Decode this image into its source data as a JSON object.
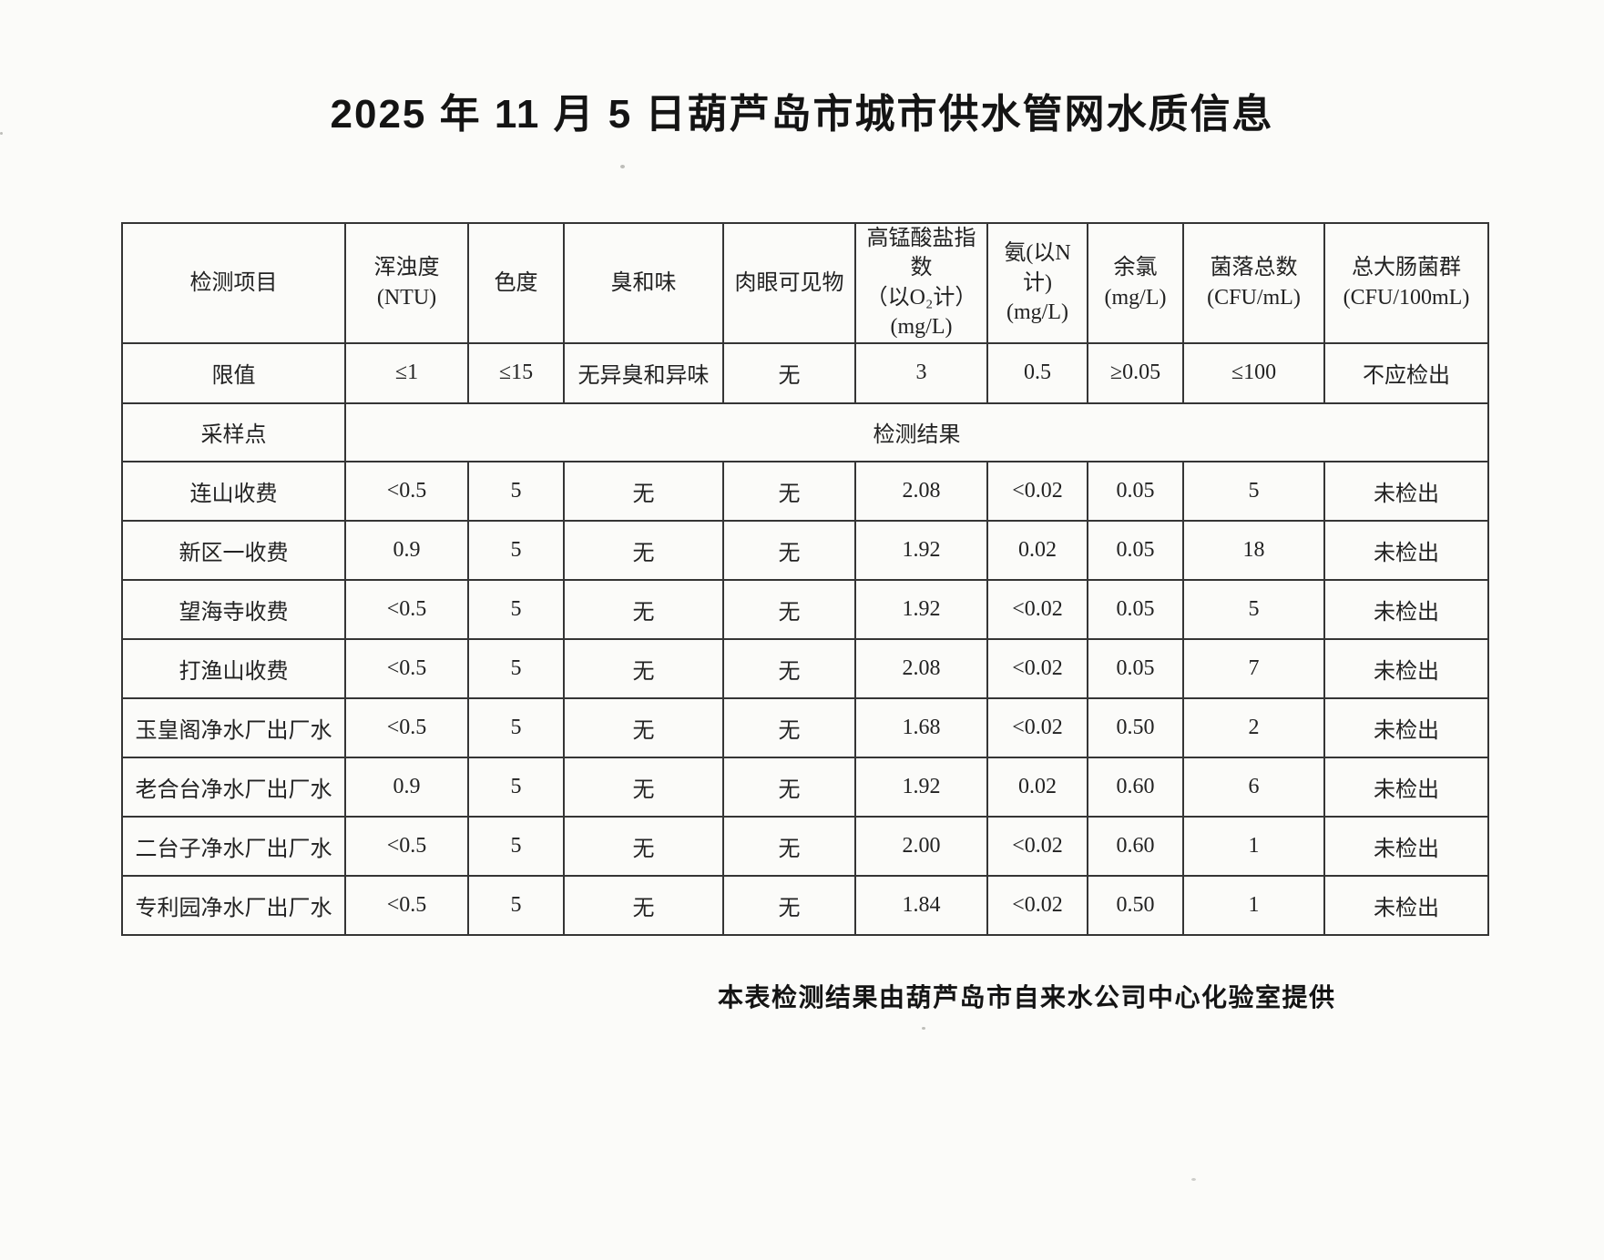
{
  "document": {
    "title": "2025 年 11 月 5 日葫芦岛市城市供水管网水质信息",
    "footer_note": "本表检测结果由葫芦岛市自来水公司中心化验室提供"
  },
  "table": {
    "header": {
      "item_label": "检测项目",
      "columns": [
        {
          "lines": [
            "浑浊度(NTU)"
          ]
        },
        {
          "lines": [
            "色度"
          ]
        },
        {
          "lines": [
            "臭和味"
          ]
        },
        {
          "lines": [
            "肉眼可见物"
          ]
        },
        {
          "lines": [
            "高锰酸盐指数",
            "（以O₂计）",
            "(mg/L)"
          ]
        },
        {
          "lines": [
            "氨(以N计)",
            "(mg/L)"
          ]
        },
        {
          "lines": [
            "余氯",
            "(mg/L)"
          ]
        },
        {
          "lines": [
            "菌落总数",
            "(CFU/mL)"
          ]
        },
        {
          "lines": [
            "总大肠菌群",
            "(CFU/100mL)"
          ]
        }
      ]
    },
    "limit_row": {
      "label": "限值",
      "values": [
        "≤1",
        "≤15",
        "无异臭和异味",
        "无",
        "3",
        "0.5",
        "≥0.05",
        "≤100",
        "不应检出"
      ]
    },
    "section_row": {
      "label": "采样点",
      "result_label": "检测结果"
    },
    "rows": [
      {
        "site": "连山收费",
        "values": [
          "<0.5",
          "5",
          "无",
          "无",
          "2.08",
          "<0.02",
          "0.05",
          "5",
          "未检出"
        ]
      },
      {
        "site": "新区一收费",
        "values": [
          "0.9",
          "5",
          "无",
          "无",
          "1.92",
          "0.02",
          "0.05",
          "18",
          "未检出"
        ]
      },
      {
        "site": "望海寺收费",
        "values": [
          "<0.5",
          "5",
          "无",
          "无",
          "1.92",
          "<0.02",
          "0.05",
          "5",
          "未检出"
        ]
      },
      {
        "site": "打渔山收费",
        "values": [
          "<0.5",
          "5",
          "无",
          "无",
          "2.08",
          "<0.02",
          "0.05",
          "7",
          "未检出"
        ]
      },
      {
        "site": "玉皇阁净水厂出厂水",
        "values": [
          "<0.5",
          "5",
          "无",
          "无",
          "1.68",
          "<0.02",
          "0.50",
          "2",
          "未检出"
        ]
      },
      {
        "site": "老合台净水厂出厂水",
        "values": [
          "0.9",
          "5",
          "无",
          "无",
          "1.92",
          "0.02",
          "0.60",
          "6",
          "未检出"
        ]
      },
      {
        "site": "二台子净水厂出厂水",
        "values": [
          "<0.5",
          "5",
          "无",
          "无",
          "2.00",
          "<0.02",
          "0.60",
          "1",
          "未检出"
        ]
      },
      {
        "site": "专利园净水厂出厂水",
        "values": [
          "<0.5",
          "5",
          "无",
          "无",
          "1.84",
          "<0.02",
          "0.50",
          "1",
          "未检出"
        ]
      }
    ]
  }
}
